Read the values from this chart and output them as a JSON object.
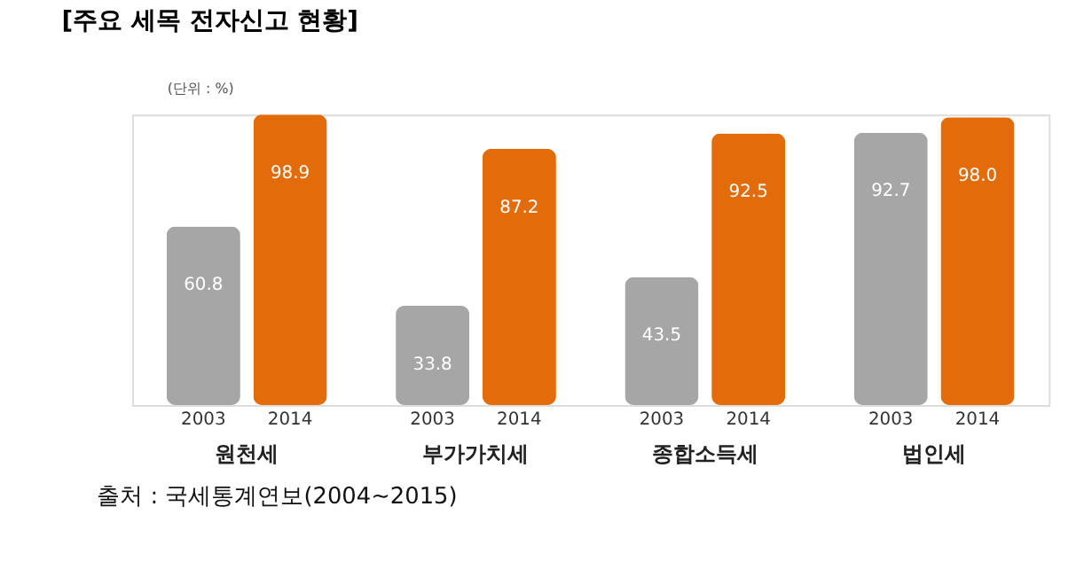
{
  "chart_data": {
    "type": "bar",
    "title": "[주요 세목 전자신고 현황]",
    "categories": [
      "원천세",
      "부가가치세",
      "종합소득세",
      "법인세"
    ],
    "series": [
      {
        "name": "2003",
        "color": "#a6a6a6",
        "values": [
          60.8,
          33.8,
          43.5,
          92.7
        ],
        "value_labels": [
          "60.8",
          "33.8",
          "43.5",
          "92.7"
        ]
      },
      {
        "name": "2014",
        "color": "#e36c0a",
        "values": [
          98.9,
          87.2,
          92.5,
          98.0
        ],
        "value_labels": [
          "98.9",
          "87.2",
          "92.5",
          "98.0"
        ]
      }
    ],
    "annotations": [
      "(단위 : %)",
      "출처 : 국세통계연보(2004~2015)"
    ]
  }
}
